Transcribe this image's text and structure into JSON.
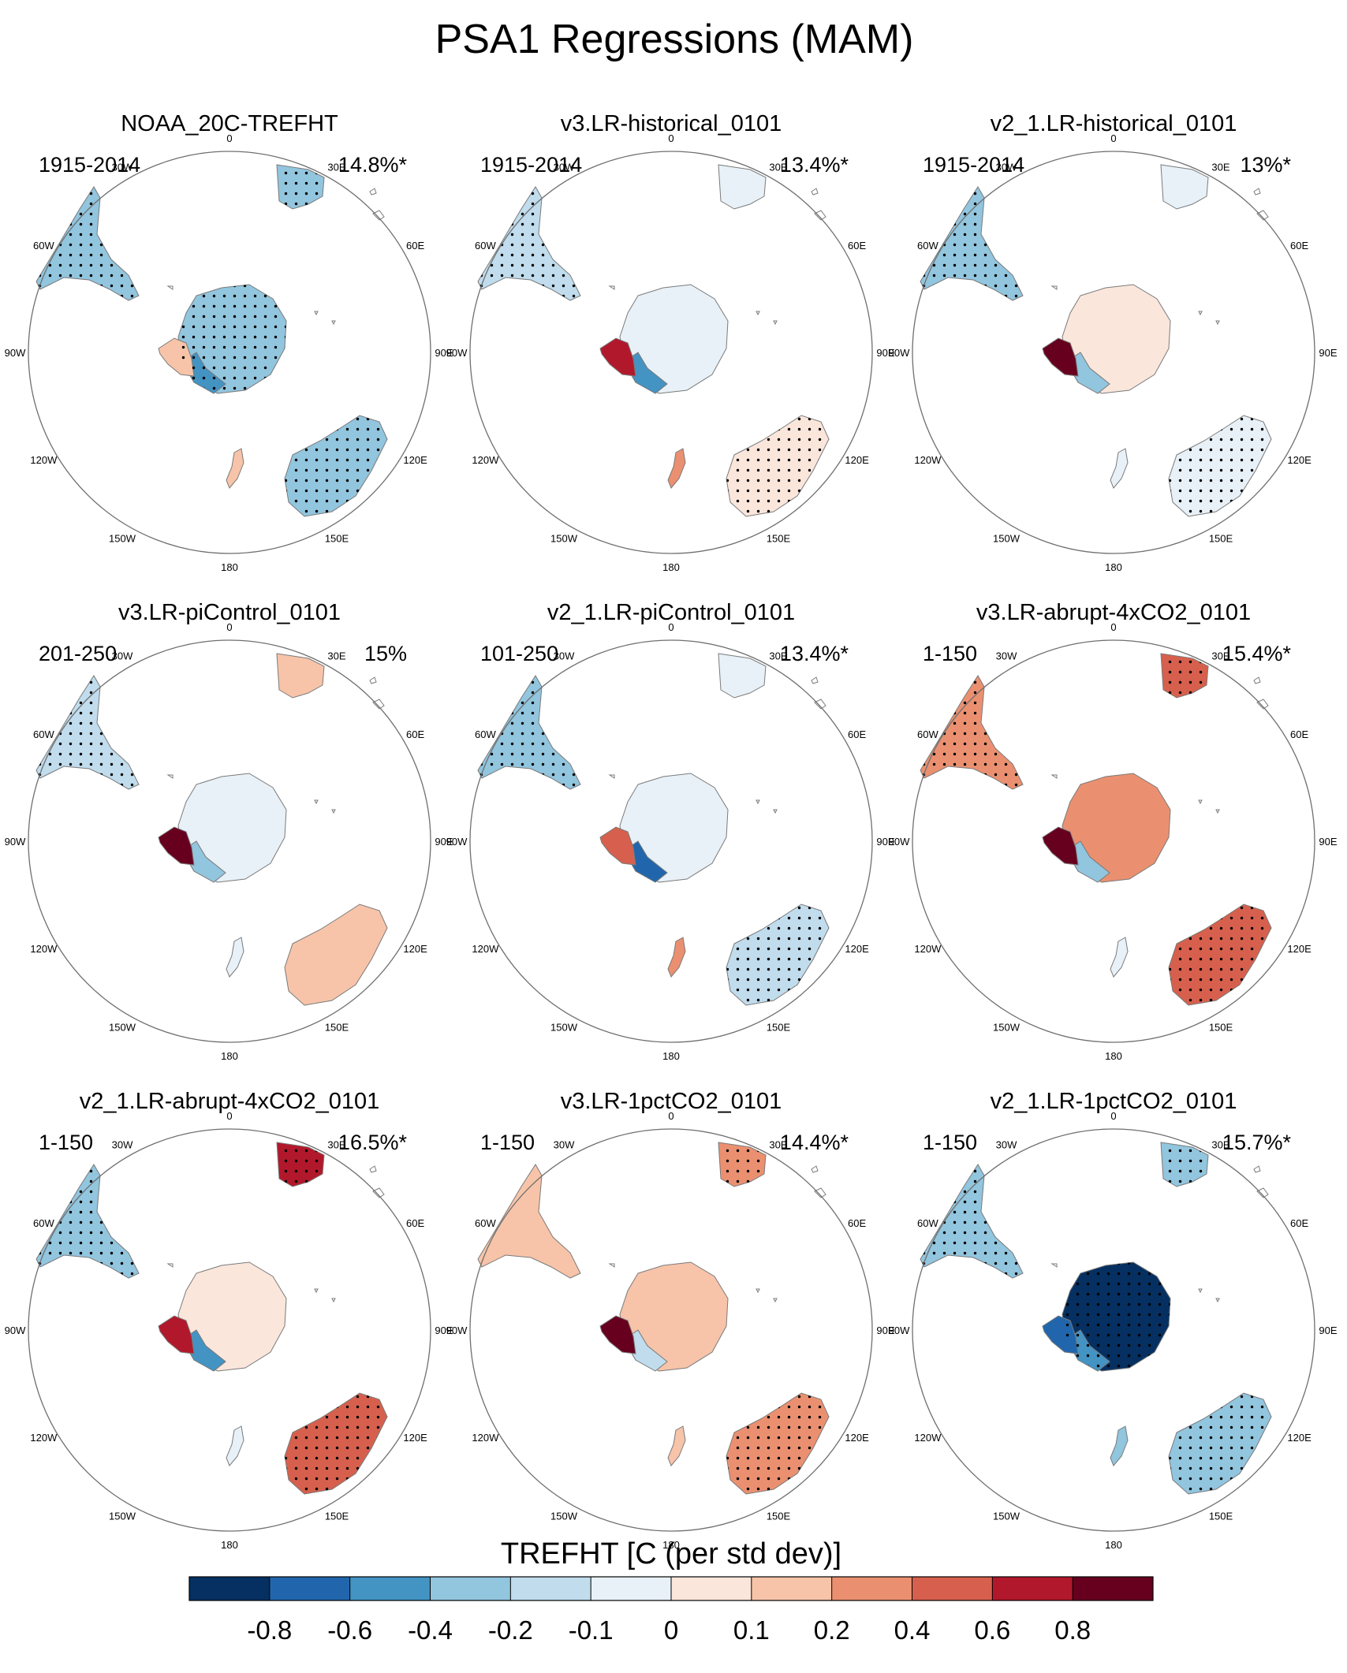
{
  "chart_data": {
    "type": "polar-map-panels",
    "title": "PSA1 Regressions (MAM)",
    "longitude_labels": [
      "0",
      "30E",
      "60E",
      "90E",
      "120E",
      "150E",
      "180",
      "150W",
      "120W",
      "90W",
      "60W",
      "30W"
    ],
    "colorbar": {
      "title": "TREFHT [C (per std dev)]",
      "ticks": [
        "-0.8",
        "-0.6",
        "-0.4",
        "-0.2",
        "-0.1",
        "0",
        "0.1",
        "0.2",
        "0.4",
        "0.6",
        "0.8"
      ],
      "colors": [
        "#053061",
        "#2166ac",
        "#4393c3",
        "#92c5de",
        "#c0dced",
        "#e8f1f7",
        "#fbe6dc",
        "#f7c4a9",
        "#ea9070",
        "#d6604d",
        "#b2182b",
        "#67001f"
      ]
    },
    "panels": [
      {
        "title": "NOAA_20C-TREFHT",
        "period": "1915-2014",
        "percent": "14.8%*",
        "regions": {
          "antarctica": -0.35,
          "west_antarctica": -0.5,
          "peninsula": 0.1,
          "south_america": -0.25,
          "africa": -0.25,
          "australia": -0.25,
          "new_zealand": 0.1
        },
        "stippled": [
          "antarctica",
          "south_america",
          "africa",
          "australia"
        ]
      },
      {
        "title": "v3.LR-historical_0101",
        "period": "1915-2014",
        "percent": "13.4%*",
        "regions": {
          "antarctica": -0.05,
          "west_antarctica": -0.45,
          "peninsula": 0.6,
          "south_america": -0.2,
          "africa": -0.05,
          "australia": 0.05,
          "new_zealand": 0.2
        },
        "stippled": [
          "south_america",
          "australia"
        ]
      },
      {
        "title": "v2_1.LR-historical_0101",
        "period": "1915-2014",
        "percent": "13%*",
        "regions": {
          "antarctica": 0.05,
          "west_antarctica": -0.3,
          "peninsula": 0.8,
          "south_america": -0.25,
          "africa": -0.05,
          "australia": -0.1,
          "new_zealand": -0.05
        },
        "stippled": [
          "south_america",
          "australia"
        ]
      },
      {
        "title": "v3.LR-piControl_0101",
        "period": "201-250",
        "percent": "15%",
        "regions": {
          "antarctica": -0.1,
          "west_antarctica": -0.4,
          "peninsula": 0.9,
          "south_america": -0.15,
          "africa": 0.1,
          "australia": 0.15,
          "new_zealand": -0.05
        },
        "stippled": [
          "south_america"
        ]
      },
      {
        "title": "v2_1.LR-piControl_0101",
        "period": "101-250",
        "percent": "13.4%*",
        "regions": {
          "antarctica": -0.05,
          "west_antarctica": -0.8,
          "peninsula": 0.5,
          "south_america": -0.3,
          "africa": -0.1,
          "australia": -0.15,
          "new_zealand": 0.2
        },
        "stippled": [
          "south_america",
          "australia"
        ]
      },
      {
        "title": "v3.LR-abrupt-4xCO2_0101",
        "period": "1-150",
        "percent": "15.4%*",
        "regions": {
          "antarctica": 0.25,
          "west_antarctica": -0.3,
          "peninsula": 0.9,
          "south_america": 0.2,
          "africa": 0.5,
          "australia": 0.5,
          "new_zealand": -0.05
        },
        "stippled": [
          "south_america",
          "africa",
          "australia"
        ]
      },
      {
        "title": "v2_1.LR-abrupt-4xCO2_0101",
        "period": "1-150",
        "percent": "16.5%*",
        "regions": {
          "antarctica": 0.05,
          "west_antarctica": -0.45,
          "peninsula": 0.7,
          "south_america": -0.3,
          "africa": 0.6,
          "australia": 0.45,
          "new_zealand": -0.05
        },
        "stippled": [
          "south_america",
          "africa",
          "australia"
        ]
      },
      {
        "title": "v3.LR-1pctCO2_0101",
        "period": "1-150",
        "percent": "14.4%*",
        "regions": {
          "antarctica": 0.15,
          "west_antarctica": -0.15,
          "peninsula": 0.8,
          "south_america": 0.15,
          "africa": 0.3,
          "australia": 0.35,
          "new_zealand": 0.1
        },
        "stippled": [
          "africa",
          "australia"
        ]
      },
      {
        "title": "v2_1.LR-1pctCO2_0101",
        "period": "1-150",
        "percent": "15.7%*",
        "regions": {
          "antarctica": -0.9,
          "west_antarctica": -0.6,
          "peninsula": -0.7,
          "south_america": -0.4,
          "africa": -0.35,
          "australia": -0.3,
          "new_zealand": -0.3
        },
        "stippled": [
          "antarctica",
          "south_america",
          "africa",
          "australia"
        ]
      }
    ]
  }
}
